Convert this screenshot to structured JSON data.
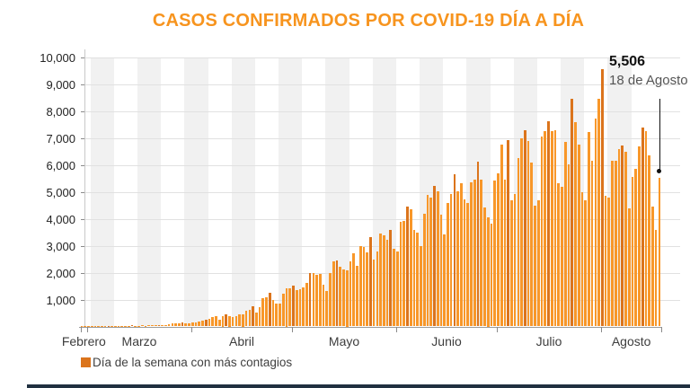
{
  "title": "CASOS CONFIRMADOS POR COVID-19 DÍA A DÍA",
  "annotation": {
    "value": "5,506",
    "date": "18 de Agosto"
  },
  "legend": {
    "label": "Día de la semana con más contagios"
  },
  "colors": {
    "title": "#F7941E",
    "bar": "#F89729",
    "bar_highlight": "#DB741C",
    "band": "#F1F1F1",
    "grid": "#E1E1E1",
    "axis": "#9B9B9B",
    "annotation": "#111111",
    "footer": "#203040"
  },
  "chart_data": {
    "type": "bar",
    "title": "CASOS CONFIRMADOS POR COVID-19 DÍA A DÍA",
    "xlabel": "",
    "ylabel": "",
    "ylim": [
      0,
      10000
    ],
    "grid": true,
    "y_tick_labels": [
      "1,000",
      "2,000",
      "3,000",
      "4,000",
      "5,000",
      "6,000",
      "7,000",
      "8,000",
      "9,000",
      "10,000"
    ],
    "months": [
      {
        "name": "Febrero",
        "days_in_view": 2
      },
      {
        "name": "Marzo",
        "days_in_view": 31
      },
      {
        "name": "Abril",
        "days_in_view": 30
      },
      {
        "name": "Mayo",
        "days_in_view": 31
      },
      {
        "name": "Junio",
        "days_in_view": 30
      },
      {
        "name": "Julio",
        "days_in_view": 31
      },
      {
        "name": "Agosto",
        "days_in_view": 18
      }
    ],
    "highlight_rule": "darker bar = day of the week with most infections (weekly max, weeks start Monday)",
    "week_start_day_index": 3,
    "annotated_point": {
      "day_label": "18 de Agosto",
      "value": 5506
    },
    "daily_values": [
      2,
      4,
      1,
      3,
      2,
      5,
      4,
      6,
      9,
      8,
      7,
      10,
      12,
      15,
      26,
      41,
      12,
      29,
      40,
      25,
      46,
      39,
      48,
      65,
      51,
      38,
      88,
      110,
      132,
      131,
      145,
      101,
      120,
      163,
      148,
      178,
      202,
      253,
      296,
      346,
      396,
      260,
      375,
      442,
      375,
      353,
      385,
      448,
      450,
      578,
      622,
      764,
      511,
      729,
      1043,
      1089,
      1239,
      970,
      835,
      852,
      1223,
      1425,
      1419,
      1515,
      1349,
      1383,
      1434,
      1609,
      1997,
      1982,
      1906,
      1938,
      1562,
      1305,
      1997,
      2409,
      2437,
      2226,
      2112,
      2075,
      2414,
      2713,
      2248,
      2973,
      2960,
      2764,
      3329,
      2485,
      2771,
      3455,
      3377,
      3227,
      3593,
      2885,
      2771,
      3891,
      3912,
      4442,
      4346,
      3593,
      3484,
      2999,
      4199,
      4883,
      4790,
      5222,
      5030,
      4147,
      3427,
      4599,
      4930,
      5662,
      5030,
      5311,
      4717,
      4577,
      5343,
      5437,
      6104,
      5441,
      4410,
      4050,
      3805,
      5432,
      5681,
      6741,
      5441,
      6914,
      4683,
      4902,
      6258,
      6995,
      7280,
      6891,
      6094,
      4482,
      4685,
      7051,
      7257,
      7615,
      7257,
      7280,
      5311,
      5172,
      6859,
      6019,
      8438,
      7573,
      6751,
      4973,
      4685,
      7208,
      6139,
      7730,
      8458,
      9556,
      4853,
      4767,
      6148,
      6139,
      6590,
      6717,
      6495,
      4376,
      5558,
      5858,
      6686,
      7371,
      7257,
      6345,
      4448,
      3571,
      5506
    ]
  }
}
